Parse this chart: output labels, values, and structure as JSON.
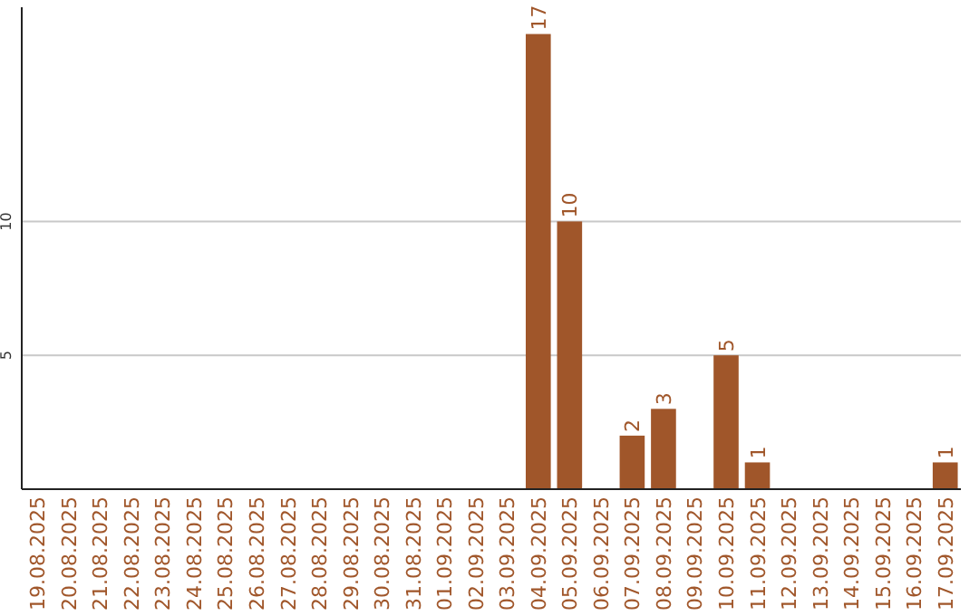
{
  "chart_data": {
    "type": "bar",
    "categories": [
      "19.08.2025",
      "20.08.2025",
      "21.08.2025",
      "22.08.2025",
      "23.08.2025",
      "24.08.2025",
      "25.08.2025",
      "26.08.2025",
      "27.08.2025",
      "28.08.2025",
      "29.08.2025",
      "30.08.2025",
      "31.08.2025",
      "01.09.2025",
      "02.09.2025",
      "03.09.2025",
      "04.09.2025",
      "05.09.2025",
      "06.09.2025",
      "07.09.2025",
      "08.09.2025",
      "09.09.2025",
      "10.09.2025",
      "11.09.2025",
      "12.09.2025",
      "13.09.2025",
      "14.09.2025",
      "15.09.2025",
      "16.09.2025",
      "17.09.2025"
    ],
    "values": [
      0,
      0,
      0,
      0,
      0,
      0,
      0,
      0,
      0,
      0,
      0,
      0,
      0,
      0,
      0,
      0,
      17,
      10,
      0,
      2,
      3,
      0,
      5,
      1,
      0,
      0,
      0,
      0,
      0,
      1
    ],
    "value_labels": [
      null,
      null,
      null,
      null,
      null,
      null,
      null,
      null,
      null,
      null,
      null,
      null,
      null,
      null,
      null,
      null,
      "17",
      "10",
      null,
      "2",
      "3",
      null,
      "5",
      "1",
      null,
      null,
      null,
      null,
      null,
      "1"
    ],
    "color": "#a0562a",
    "ylim": [
      0,
      18
    ],
    "yticks": [
      5,
      10
    ],
    "grid": "y"
  }
}
